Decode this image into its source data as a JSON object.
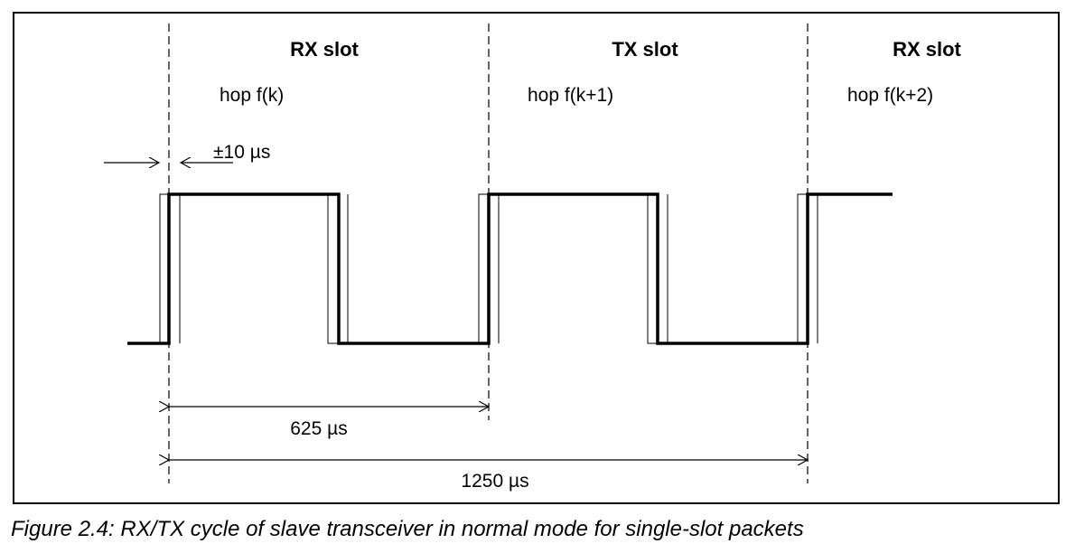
{
  "slots": [
    {
      "title": "RX slot",
      "hop": "hop f(k)"
    },
    {
      "title": "TX slot",
      "hop": "hop f(k+1)"
    },
    {
      "title": "RX slot",
      "hop": "hop f(k+2)"
    }
  ],
  "tolerance_label": "±10 µs",
  "dimensions": {
    "short": "625 µs",
    "long": "1250 µs"
  },
  "caption": "Figure 2.4:  RX/TX cycle of slave transceiver in normal mode for single-slot packets"
}
